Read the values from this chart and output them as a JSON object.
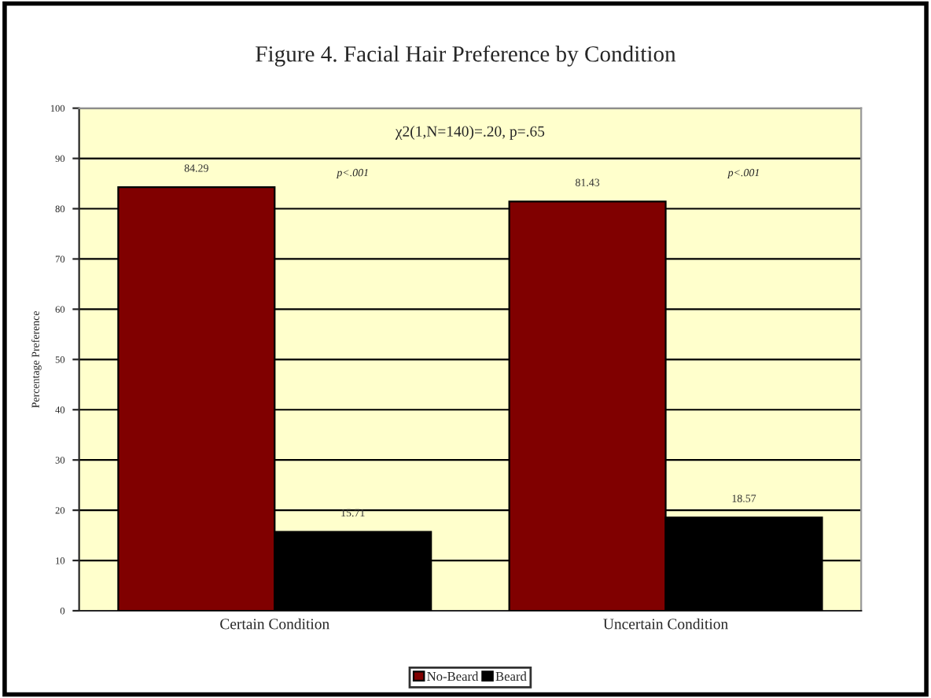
{
  "chart_data": {
    "type": "bar",
    "title": "Figure 4. Facial Hair Preference by Condition",
    "ylabel": "Percentage Preference",
    "categories": [
      "Certain Condition",
      "Uncertain Condition"
    ],
    "series": [
      {
        "name": "No-Beard",
        "color": "#800000",
        "values": [
          84.29,
          81.43
        ]
      },
      {
        "name": "Beard",
        "color": "#000000",
        "values": [
          15.71,
          18.57
        ]
      }
    ],
    "annotations": [
      "χ2(1,N=140)=.20, p=.65",
      "p<.001",
      "p<.001"
    ],
    "ylim": [
      0,
      100
    ],
    "yticks": [
      0,
      10,
      20,
      30,
      40,
      50,
      60,
      70,
      80,
      90,
      100
    ],
    "grid": "y",
    "legend": "bottom",
    "data_labels": true
  }
}
